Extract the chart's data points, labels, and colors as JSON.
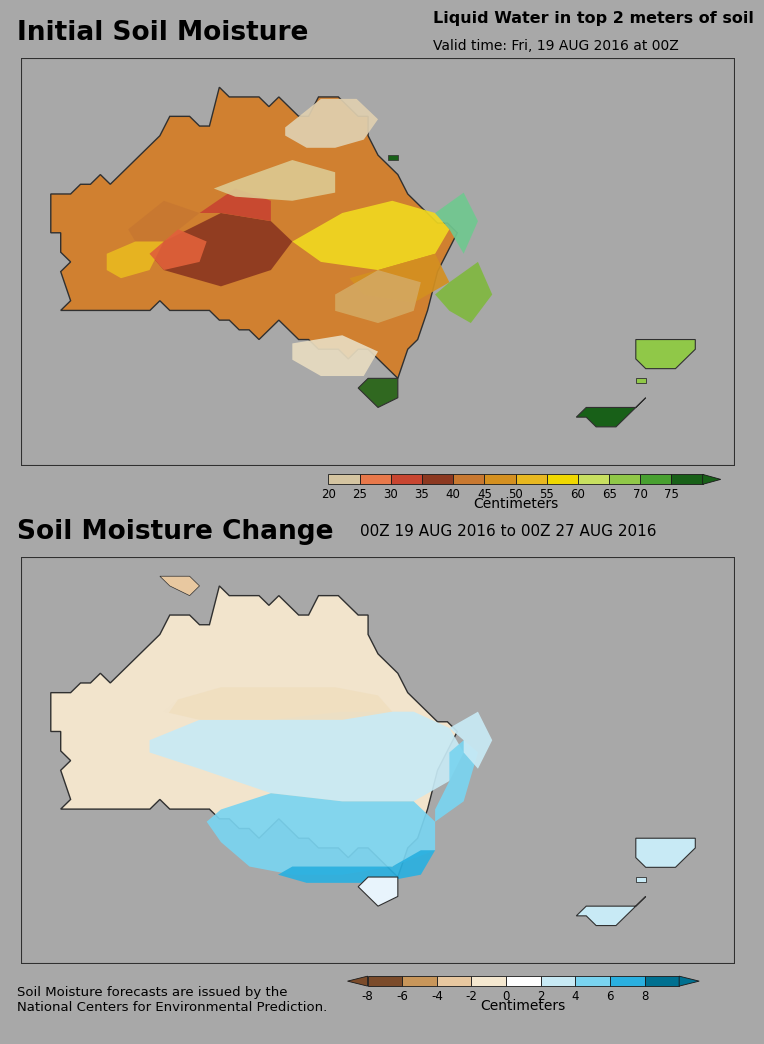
{
  "title1": "Initial Soil Moisture",
  "subtitle1": "Liquid Water in top 2 meters of soil",
  "validtime1": "Valid time: Fri, 19 AUG 2016 at 00Z",
  "title2": "Soil Moisture Change",
  "subtitle2": "00Z 19 AUG 2016 to 00Z 27 AUG 2016",
  "footer": "Soil Moisture forecasts are issued by the\nNational Centers for Environmental Prediction.",
  "colorbar1_label": "Centimeters",
  "colorbar1_ticks": [
    "20",
    "25",
    "30",
    "35",
    "40",
    "45",
    "50",
    "55",
    "60",
    "65",
    "70",
    "75"
  ],
  "colorbar1_colors": [
    "#d4c4a0",
    "#e8784a",
    "#c84530",
    "#8c3820",
    "#c87830",
    "#d49020",
    "#e8b820",
    "#f0d800",
    "#c8e060",
    "#90c848",
    "#48a030",
    "#186018"
  ],
  "colorbar2_label": "Centimeters",
  "colorbar2_ticks": [
    "-8",
    "-6",
    "-4",
    "-2",
    "0",
    "2",
    "4",
    "6",
    "8"
  ],
  "colorbar2_colors": [
    "#7b4b2a",
    "#c8965a",
    "#e8c8a0",
    "#f5e8d0",
    "#ffffff",
    "#c8eaf5",
    "#7ad4f0",
    "#2ab0e0",
    "#007090"
  ],
  "bg_color": "#a8a8a8",
  "map_bg": "#a8a8a8",
  "border_color": "#303030",
  "title1_fontsize": 19,
  "title2_fontsize": 19,
  "subtitle_fontsize": 11.5,
  "validtime_fontsize": 10,
  "tick_fontsize": 8.5,
  "label_fontsize": 10,
  "footer_fontsize": 9.5
}
